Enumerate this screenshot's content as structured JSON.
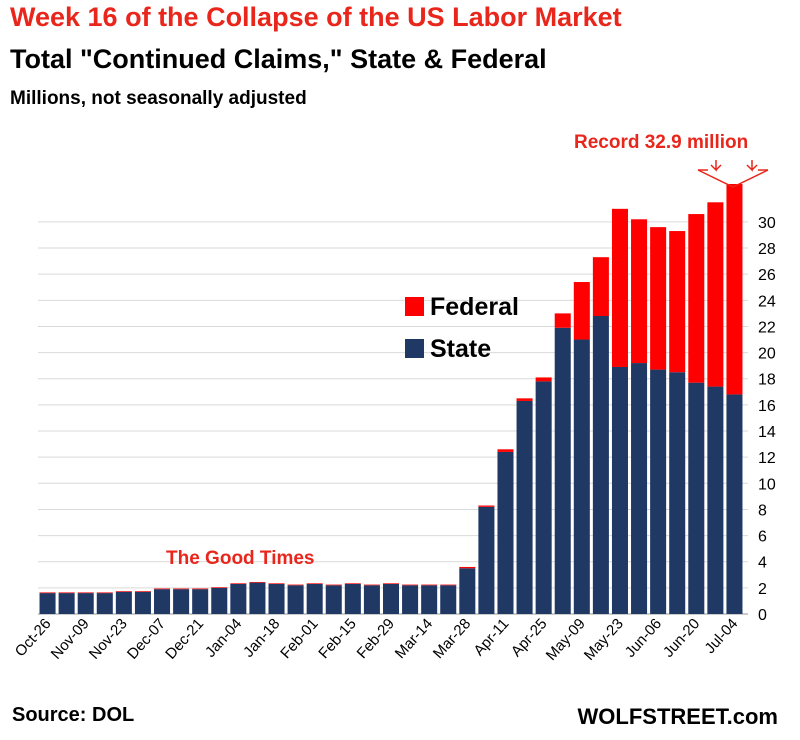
{
  "header": {
    "title": "Week 16 of the Collapse of the US Labor Market",
    "subtitle": "Total \"Continued Claims,\" State & Federal",
    "units": "Millions, not seasonally adjusted"
  },
  "footer": {
    "source": "Source: DOL",
    "brand": "WOLFSTREET.com"
  },
  "annotations": {
    "good_times": "The Good Times",
    "record": "Record 32.9 million"
  },
  "colors": {
    "state": "#1f3864",
    "federal": "#ff0000",
    "grid": "#d9d9d9",
    "annotation": "#e8261c"
  },
  "chart_data": {
    "type": "bar",
    "stacked": true,
    "x_tick_labels": [
      "Oct-26",
      "Nov-09",
      "Nov-23",
      "Dec-07",
      "Dec-21",
      "Jan-04",
      "Jan-18",
      "Feb-01",
      "Feb-15",
      "Feb-29",
      "Mar-14",
      "Mar-28",
      "Apr-11",
      "Apr-25",
      "May-09",
      "May-23",
      "Jun-06",
      "Jun-20",
      "Jul-04"
    ],
    "series": [
      {
        "name": "State",
        "values": [
          1.6,
          1.6,
          1.6,
          1.6,
          1.7,
          1.7,
          1.9,
          1.9,
          1.9,
          2.0,
          2.3,
          2.4,
          2.3,
          2.2,
          2.3,
          2.2,
          2.3,
          2.2,
          2.3,
          2.2,
          2.2,
          2.2,
          3.5,
          8.2,
          12.4,
          16.3,
          17.8,
          21.9,
          21.0,
          22.8,
          18.9,
          19.2,
          18.7,
          18.5,
          17.7,
          17.4,
          16.8
        ]
      },
      {
        "name": "Federal",
        "values": [
          0.05,
          0.05,
          0.05,
          0.05,
          0.05,
          0.05,
          0.05,
          0.05,
          0.05,
          0.05,
          0.05,
          0.05,
          0.05,
          0.05,
          0.05,
          0.05,
          0.05,
          0.05,
          0.05,
          0.05,
          0.05,
          0.05,
          0.1,
          0.1,
          0.2,
          0.2,
          0.3,
          1.1,
          4.4,
          4.5,
          12.1,
          11.0,
          10.9,
          10.8,
          12.9,
          14.1,
          16.1
        ]
      }
    ],
    "ylim": [
      0,
      32.9
    ],
    "y_ticks": [
      0,
      2,
      4,
      6,
      8,
      10,
      12,
      14,
      16,
      18,
      20,
      22,
      24,
      26,
      28,
      30
    ],
    "y_axis_side": "right",
    "grid": true,
    "legend": "center-left"
  }
}
